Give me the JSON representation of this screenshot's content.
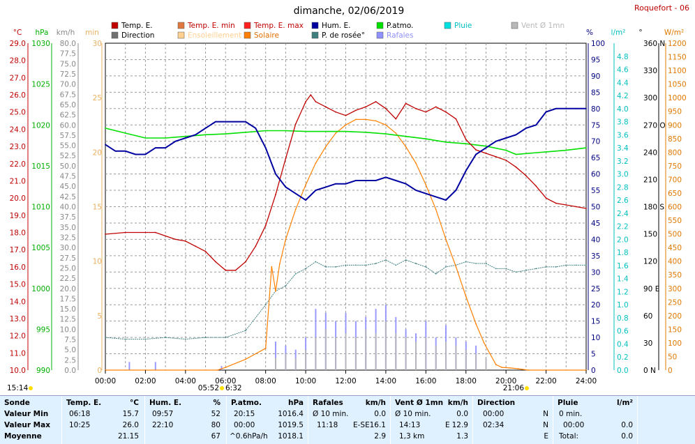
{
  "chart_data": {
    "type": "line",
    "title": "dimanche, 02/06/2019",
    "station": "Roquefort - 06",
    "x_ticks": [
      "00:00",
      "02:00",
      "04:00",
      "06:00",
      "08:00",
      "10:00",
      "12:00",
      "14:00",
      "16:00",
      "18:00",
      "20:00",
      "22:00",
      "24:00"
    ],
    "x_range_hours": [
      0,
      24
    ],
    "time_markers": [
      "15:14",
      "05:52",
      "6:32",
      "21:06"
    ],
    "legend": [
      {
        "label": "Temp. E.",
        "color": "#c00000"
      },
      {
        "label": "Temp. E. min",
        "color": "#e07840"
      },
      {
        "label": "Temp. E. max",
        "color": "#ff2020"
      },
      {
        "label": "Hum. E.",
        "color": "#0000a0"
      },
      {
        "label": "P.atmo.",
        "color": "#00e000"
      },
      {
        "label": "Pluie",
        "color": "#00e0e0"
      },
      {
        "label": "Vent Ø 1mn",
        "color": "#b8b8b8"
      },
      {
        "label": "Direction",
        "color": "#707070"
      },
      {
        "label": "Ensoleillement",
        "color": "#ffd090"
      },
      {
        "label": "Solaire",
        "color": "#ff8000"
      },
      {
        "label": "P. de rosée°",
        "color": "#408080"
      },
      {
        "label": "Rafales",
        "color": "#9090ff"
      }
    ],
    "axes": {
      "temp_c": {
        "unit": "°C",
        "color": "#c00000",
        "range": [
          10,
          29
        ],
        "ticks": [
          "29.0",
          "28.0",
          "27.0",
          "26.0",
          "25.0",
          "24.0",
          "23.0",
          "22.0",
          "21.0",
          "20.0",
          "19.0",
          "18.0",
          "17.0",
          "16.0",
          "15.0",
          "14.0",
          "13.0",
          "12.0",
          "11.0",
          "10.0"
        ]
      },
      "pressure_hpa": {
        "unit": "hPa",
        "color": "#00b000",
        "range": [
          990,
          1030
        ],
        "ticks": [
          "1030",
          "1025",
          "1020",
          "1015",
          "1010",
          "1005",
          "1000",
          "995",
          "990"
        ]
      },
      "wind_kmh": {
        "unit": "km/h",
        "color": "#888888",
        "range": [
          0,
          80
        ],
        "ticks": [
          "80.0",
          "77.5",
          "75.0",
          "72.5",
          "70.0",
          "67.5",
          "65.0",
          "62.5",
          "60.0",
          "57.5",
          "55.0",
          "52.5",
          "50.0",
          "47.5",
          "45.0",
          "42.5",
          "40.0",
          "37.5",
          "35.0",
          "32.5",
          "30.0",
          "27.5",
          "25.0",
          "22.5",
          "20.0",
          "17.5",
          "15.0",
          "12.5",
          "10.0",
          "7.5",
          "5.0",
          "2.5",
          "0.0"
        ]
      },
      "sun_min": {
        "unit": "min",
        "color": "#e8b060",
        "range": [
          0,
          30
        ],
        "ticks": [
          "30",
          "25",
          "20",
          "15",
          "10",
          "5",
          "0"
        ]
      },
      "humidity_pct": {
        "unit": "%",
        "color": "#000080",
        "range": [
          0,
          100
        ],
        "ticks": [
          "100",
          "95",
          "90",
          "85",
          "80",
          "75",
          "70",
          "65",
          "60",
          "55",
          "50",
          "45",
          "40",
          "35",
          "30",
          "25",
          "20",
          "15",
          "10",
          "5",
          "0"
        ]
      },
      "rain_lm2": {
        "unit": "l/m²",
        "color": "#00c0c0",
        "range": [
          0,
          5
        ],
        "ticks": [
          "4.8",
          "4.6",
          "4.4",
          "4.2",
          "4.0",
          "3.8",
          "3.6",
          "3.4",
          "3.2",
          "3.0",
          "2.8",
          "2.6",
          "2.4",
          "2.2",
          "2.0",
          "1.8",
          "1.6",
          "1.4",
          "1.2",
          "1.0",
          "0.8",
          "0.6",
          "0.4",
          "0.2",
          "0.0"
        ]
      },
      "direction_deg": {
        "unit": "°",
        "color": "#000000",
        "range": [
          0,
          360
        ],
        "ticks": [
          "360 N",
          "330",
          "300",
          "270 O",
          "240",
          "210",
          "180 S",
          "150",
          "120",
          "90 E",
          "60",
          "30",
          "0 N"
        ]
      },
      "solar_wm2": {
        "unit": "W/m²",
        "color": "#e07800",
        "range": [
          0,
          1200
        ],
        "ticks": [
          "1200",
          "1150",
          "1100",
          "1050",
          "1000",
          "950",
          "900",
          "850",
          "800",
          "750",
          "700",
          "650",
          "600",
          "550",
          "500",
          "450",
          "400",
          "350",
          "300",
          "250",
          "200",
          "150",
          "100",
          "50",
          "0"
        ]
      }
    },
    "series": [
      {
        "name": "Temp. E.",
        "axis": "temp_c",
        "color": "#c00000",
        "x": [
          0,
          1,
          2,
          2.5,
          3,
          3.5,
          4,
          4.5,
          5,
          5.5,
          6,
          6.5,
          7,
          7.5,
          8,
          8.5,
          9,
          9.5,
          10,
          10.25,
          10.5,
          11,
          11.5,
          12,
          12.5,
          13,
          13.5,
          14,
          14.5,
          15,
          15.5,
          16,
          16.5,
          17,
          17.5,
          18,
          18.5,
          19,
          19.5,
          20,
          20.5,
          21,
          21.5,
          22,
          22.5,
          23,
          23.5,
          24
        ],
        "values": [
          17.9,
          18.0,
          18.0,
          18.0,
          17.8,
          17.6,
          17.5,
          17.2,
          16.9,
          16.3,
          15.8,
          15.8,
          16.3,
          17.2,
          18.4,
          20.2,
          22.3,
          24.3,
          25.6,
          26.0,
          25.6,
          25.3,
          25.0,
          24.8,
          25.1,
          25.3,
          25.6,
          25.2,
          24.6,
          25.5,
          25.2,
          25.0,
          25.3,
          25.0,
          24.6,
          23.4,
          22.8,
          22.6,
          22.4,
          22.2,
          21.8,
          21.3,
          20.7,
          20.0,
          19.7,
          19.6,
          19.5,
          19.4
        ]
      },
      {
        "name": "Hum. E.",
        "axis": "humidity_pct",
        "color": "#0000a0",
        "x": [
          0,
          0.5,
          1,
          1.5,
          2,
          2.5,
          3,
          3.5,
          4,
          4.5,
          5,
          5.5,
          6,
          6.5,
          7,
          7.5,
          8,
          8.5,
          9,
          9.5,
          10,
          10.5,
          11,
          11.5,
          12,
          12.5,
          13,
          13.5,
          14,
          14.5,
          15,
          15.5,
          16,
          16.5,
          17,
          17.5,
          18,
          18.5,
          19,
          19.5,
          20,
          20.5,
          21,
          21.5,
          22,
          22.5,
          23,
          23.5,
          24
        ],
        "values": [
          69,
          67,
          67,
          66,
          66,
          68,
          68,
          70,
          71,
          72,
          74,
          76,
          76,
          76,
          76,
          74,
          68,
          60,
          56,
          54,
          52,
          55,
          56,
          57,
          57,
          58,
          58,
          58,
          59,
          58,
          57,
          55,
          54,
          53,
          52,
          55,
          61,
          66,
          68,
          70,
          71,
          72,
          74,
          75,
          79,
          80,
          80,
          80,
          80
        ]
      },
      {
        "name": "P.atmo.",
        "axis": "pressure_hpa",
        "color": "#00e000",
        "x": [
          0,
          1,
          2,
          3,
          4,
          5,
          6,
          7,
          8,
          9,
          10,
          11,
          12,
          13,
          14,
          15,
          16,
          17,
          18,
          19,
          20,
          20.5,
          21,
          22,
          23,
          24
        ],
        "values": [
          1019.6,
          1019.0,
          1018.4,
          1018.4,
          1018.6,
          1018.8,
          1018.9,
          1019.1,
          1019.3,
          1019.3,
          1019.2,
          1019.2,
          1019.2,
          1019.1,
          1018.9,
          1018.6,
          1018.3,
          1017.9,
          1017.7,
          1017.4,
          1016.9,
          1016.4,
          1016.5,
          1016.7,
          1016.9,
          1017.2
        ]
      },
      {
        "name": "P. de rosée°",
        "axis": "temp_c",
        "color": "#408080",
        "x": [
          0,
          1,
          2,
          3,
          4,
          5,
          6,
          7,
          8,
          8.5,
          9,
          9.5,
          10,
          10.5,
          11,
          11.5,
          12,
          12.5,
          13,
          13.5,
          14,
          14.5,
          15,
          15.5,
          16,
          16.5,
          17,
          17.5,
          18,
          18.5,
          19,
          19.5,
          20,
          20.5,
          21,
          21.5,
          22,
          22.5,
          23,
          23.5,
          24
        ],
        "values": [
          11.9,
          11.8,
          11.8,
          11.9,
          11.8,
          11.9,
          11.9,
          12.3,
          13.8,
          14.6,
          14.9,
          15.6,
          15.9,
          16.3,
          16.0,
          16.0,
          16.1,
          16.1,
          16.1,
          16.2,
          16.4,
          16.1,
          16.4,
          16.2,
          16.0,
          15.6,
          16.0,
          16.1,
          16.3,
          16.2,
          16.2,
          15.9,
          15.9,
          15.7,
          15.8,
          15.9,
          16.0,
          16.0,
          16.1,
          16.1,
          16.1
        ]
      },
      {
        "name": "Solaire",
        "axis": "solar_wm2",
        "color": "#ff8000",
        "x": [
          0,
          5.6,
          6,
          7,
          8,
          8.3,
          8.5,
          8.7,
          9,
          9.5,
          10,
          10.5,
          11,
          11.5,
          12,
          12.5,
          13,
          13.5,
          14,
          14.5,
          15,
          15.5,
          16,
          16.5,
          17,
          17.5,
          18,
          18.5,
          18.9,
          19.2,
          19.5,
          19.8,
          20.2,
          20.6,
          21.1,
          24
        ],
        "values": [
          0,
          0,
          10,
          40,
          80,
          380,
          290,
          390,
          480,
          590,
          680,
          760,
          820,
          870,
          900,
          920,
          920,
          915,
          900,
          870,
          820,
          760,
          680,
          590,
          480,
          380,
          270,
          170,
          100,
          60,
          20,
          10,
          8,
          5,
          0,
          0
        ]
      },
      {
        "name": "Vent Ø 1mn",
        "axis": "wind_kmh",
        "color": "#b8b8b8",
        "x": [
          8.5,
          9,
          9.5,
          10,
          10.5,
          11,
          11.5,
          12,
          12.5,
          13,
          13.5,
          14,
          14.5,
          15,
          15.5,
          16,
          16.5,
          17,
          17.5,
          18,
          18.5,
          19
        ],
        "values": [
          3,
          4,
          3,
          5,
          8,
          10,
          8,
          9,
          8,
          10,
          9,
          12,
          9,
          8,
          7,
          8,
          6,
          7,
          6,
          5,
          4,
          3
        ]
      },
      {
        "name": "Rafales",
        "axis": "wind_kmh",
        "color": "#9090ff",
        "x": [
          1.2,
          2.5,
          5.8,
          8.5,
          9,
          9.5,
          10,
          10.5,
          11,
          11.5,
          12,
          12.5,
          13,
          13.5,
          14,
          14.5,
          15,
          15.5,
          16,
          16.5,
          17,
          17.5,
          18,
          18.5,
          19
        ],
        "values": [
          2,
          2,
          1,
          7,
          6,
          5,
          8,
          15,
          14,
          12,
          14,
          12,
          13,
          15,
          16,
          13,
          10,
          9,
          12,
          8,
          11,
          8,
          7,
          6,
          3
        ]
      }
    ]
  },
  "summary": {
    "sonde": {
      "title": "Sonde",
      "rows": [
        "Valeur Min",
        "Valeur Max",
        "Moyenne"
      ]
    },
    "temp": {
      "title": "Temp. E.",
      "unit": "°C",
      "rows": [
        [
          "06:18",
          "15.7"
        ],
        [
          "10:25",
          "26.0"
        ],
        [
          "",
          "21.15"
        ]
      ]
    },
    "hum": {
      "title": "Hum. E.",
      "unit": "%",
      "rows": [
        [
          "09:57",
          "52"
        ],
        [
          "22:10",
          "80"
        ],
        [
          "",
          "67"
        ]
      ]
    },
    "patmo": {
      "title": "P.atmo.",
      "unit": "hPa",
      "rows": [
        [
          "20:15",
          "1016.4"
        ],
        [
          "00:00",
          "1019.5"
        ],
        [
          "^0.6hPa/h",
          "1018.1"
        ]
      ]
    },
    "rafales": {
      "title": "Rafales",
      "unit": "km/h",
      "rows": [
        [
          "Ø 10 min.",
          "",
          "0.0"
        ],
        [
          "11:18",
          "E-SE",
          "16.1"
        ],
        [
          "",
          "",
          "2.9"
        ]
      ]
    },
    "vent": {
      "title": "Vent Ø 1mn",
      "unit": "km/h",
      "rows": [
        [
          "Ø 10 min.",
          "",
          "0.0"
        ],
        [
          "14:13",
          "E",
          "12.9"
        ],
        [
          "1,3 km",
          "",
          "1.3"
        ]
      ]
    },
    "direction": {
      "title": "Direction",
      "rows": [
        [
          "00:00",
          "N"
        ],
        [
          "02:34",
          "N"
        ],
        [
          "",
          "E"
        ]
      ]
    },
    "pluie": {
      "title": "Pluie",
      "unit": "l/m²",
      "rows": [
        [
          "0 min.",
          ""
        ],
        [
          "00:00",
          "0.0"
        ],
        [
          "Total:",
          "0.0"
        ]
      ]
    }
  }
}
